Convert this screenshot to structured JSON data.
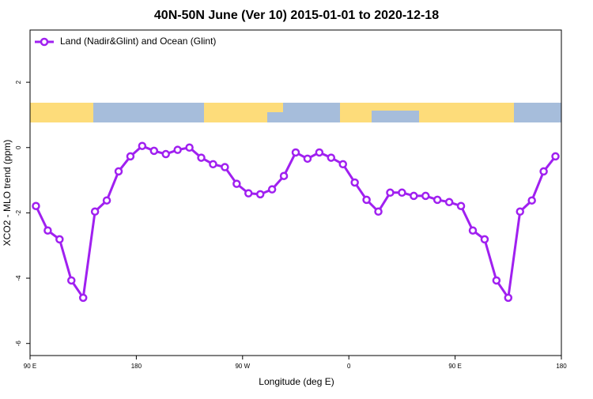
{
  "chart_data": {
    "type": "line",
    "title": "40N-50N June (Ver 10)   2015-01-01 to 2020-12-18",
    "x_label": "Longitude (deg E)",
    "y_label": "XCO2 - MLO trend (ppm)",
    "x": [
      95,
      105,
      115,
      125,
      135,
      145,
      155,
      165,
      175,
      185,
      195,
      205,
      215,
      225,
      235,
      245,
      255,
      265,
      275,
      285,
      295,
      305,
      315,
      325,
      335,
      345,
      355,
      365,
      375,
      385,
      395,
      405,
      415,
      425,
      435,
      445,
      455,
      465,
      475,
      485,
      495,
      505,
      515,
      525,
      535
    ],
    "series": [
      {
        "name": "Land (Nadir&Glint) and Ocean (Glint)",
        "color": "#a020f0",
        "values": [
          -1.79,
          -2.54,
          -2.81,
          -4.07,
          -4.6,
          -1.96,
          -1.62,
          -0.73,
          -0.27,
          0.05,
          -0.1,
          -0.2,
          -0.07,
          0.0,
          -0.31,
          -0.51,
          -0.6,
          -1.11,
          -1.4,
          -1.43,
          -1.28,
          -0.87,
          -0.15,
          -0.34,
          -0.15,
          -0.31,
          -0.51,
          -1.07,
          -1.6,
          -1.96,
          -1.38,
          -1.38,
          -1.48,
          -1.48,
          -1.6,
          -1.67,
          -1.79,
          -2.54,
          -2.81,
          -4.07,
          -4.6,
          -1.96,
          -1.62,
          -0.73,
          -0.27
        ]
      }
    ],
    "xlim": [
      90,
      540
    ],
    "xticks": [
      {
        "value": 90,
        "label": "90 E"
      },
      180,
      {
        "value": 270,
        "label": "90 W"
      },
      {
        "value": 360,
        "label": "0"
      },
      {
        "value": 450,
        "label": "90 E"
      },
      {
        "value": 540,
        "label": "180"
      }
    ],
    "ylim": [
      -6.37,
      3.6
    ],
    "yticks": [
      -6,
      -4,
      -2,
      0,
      2
    ],
    "legend": "top-left"
  }
}
